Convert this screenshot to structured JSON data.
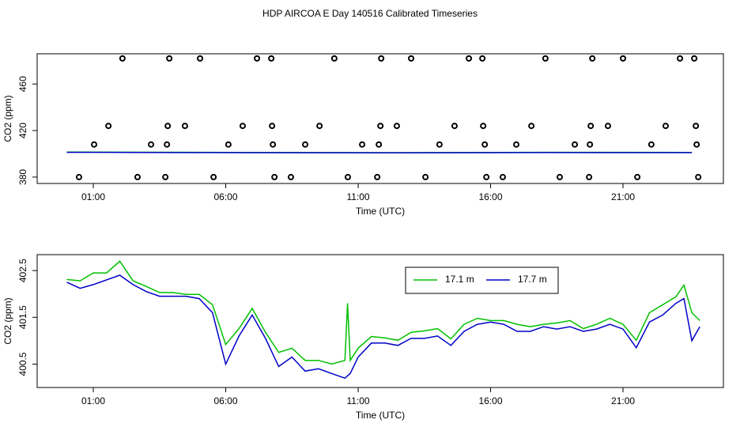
{
  "title": "HDP AIRCOA E  Day 140516  Calibrated Timeseries",
  "chart_data": [
    {
      "type": "scatter",
      "xlabel": "Time (UTC)",
      "ylabel": "CO2 (ppm)",
      "xlim": [
        -1.12,
        24.79
      ],
      "xticks": [
        {
          "value": 1,
          "label": "01:00"
        },
        {
          "value": 6,
          "label": "06:00"
        },
        {
          "value": 11,
          "label": "11:00"
        },
        {
          "value": 16,
          "label": "16:00"
        },
        {
          "value": 21,
          "label": "21:00"
        }
      ],
      "ylim": [
        374.5,
        486
      ],
      "yticks": [
        380,
        420,
        460
      ],
      "points": {
        "color": "#000000",
        "x": [
          2.1,
          3.87,
          5.03,
          7.18,
          7.72,
          10.1,
          11.87,
          13.0,
          15.18,
          15.69,
          18.07,
          19.84,
          21.0,
          23.15,
          23.69,
          1.57,
          3.81,
          4.46,
          6.64,
          7.75,
          9.54,
          11.84,
          12.46,
          14.64,
          15.72,
          17.54,
          19.78,
          20.43,
          22.61,
          23.75,
          1.03,
          3.18,
          3.78,
          6.1,
          7.78,
          9.0,
          11.15,
          11.78,
          14.07,
          15.78,
          16.97,
          19.18,
          19.75,
          22.07,
          23.78,
          0.46,
          2.67,
          3.72,
          5.54,
          7.84,
          8.46,
          10.61,
          11.72,
          13.54,
          15.84,
          16.46,
          18.61,
          19.72,
          21.54,
          23.84
        ],
        "values": [
          482,
          482,
          482,
          482,
          482,
          482,
          482,
          482,
          482,
          482,
          482,
          482,
          482,
          482,
          482,
          424,
          424,
          424,
          424,
          424,
          424,
          424,
          424,
          424,
          424,
          424,
          424,
          424,
          424,
          424,
          408,
          408,
          408,
          408,
          408,
          408,
          408,
          408,
          408,
          408,
          408,
          408,
          408,
          408,
          408,
          380,
          380,
          380,
          380,
          380,
          380,
          380,
          380,
          380,
          380,
          380,
          380,
          380,
          380,
          380
        ]
      },
      "series": [
        {
          "color": "#00c000",
          "x": [
            0,
            6,
            12,
            18,
            23.6
          ],
          "values": [
            401.5,
            401.2,
            401,
            401.3,
            401.2
          ]
        },
        {
          "color": "#0000c8",
          "x": [
            0,
            6,
            12,
            18,
            23.6
          ],
          "values": [
            401.3,
            401,
            400.8,
            401.1,
            401
          ]
        }
      ]
    },
    {
      "type": "line",
      "xlabel": "Time (UTC)",
      "ylabel": "CO2 (ppm)",
      "xlim": [
        -1.12,
        24.79
      ],
      "xticks": [
        {
          "value": 1,
          "label": "01:00"
        },
        {
          "value": 6,
          "label": "06:00"
        },
        {
          "value": 11,
          "label": "11:00"
        },
        {
          "value": 16,
          "label": "16:00"
        },
        {
          "value": 21,
          "label": "21:00"
        }
      ],
      "ylim": [
        400.0,
        402.84
      ],
      "yticks": [
        400.5,
        401.5,
        402.5
      ],
      "legend": "top-right",
      "x": [
        0,
        0.5,
        1,
        1.5,
        2,
        2.5,
        3,
        3.5,
        4,
        4.5,
        5,
        5.5,
        6,
        6.5,
        7,
        7.5,
        8,
        8.5,
        9,
        9.5,
        10,
        10.5,
        10.6,
        10.7,
        11,
        11.5,
        12,
        12.5,
        13,
        13.5,
        14,
        14.5,
        15,
        15.5,
        16,
        16.5,
        17,
        17.5,
        18,
        18.5,
        19,
        19.5,
        20,
        20.5,
        21,
        21.5,
        22,
        22.5,
        23,
        23.3,
        23.6,
        23.9
      ],
      "series": [
        {
          "name": "17.1 m",
          "color": "#00c000",
          "values": [
            402.31,
            402.28,
            402.45,
            402.45,
            402.7,
            402.28,
            402.16,
            402.03,
            402.03,
            401.99,
            401.99,
            401.77,
            400.92,
            401.26,
            401.69,
            401.18,
            400.75,
            400.84,
            400.58,
            400.58,
            400.5,
            400.58,
            401.8,
            400.58,
            400.84,
            401.09,
            401.06,
            401.01,
            401.18,
            401.21,
            401.26,
            401.04,
            401.35,
            401.48,
            401.43,
            401.43,
            401.35,
            401.3,
            401.35,
            401.38,
            401.43,
            401.26,
            401.35,
            401.48,
            401.35,
            401.01,
            401.6,
            401.77,
            401.94,
            402.19,
            401.6,
            401.43
          ]
        },
        {
          "name": "17.7 m",
          "color": "#0000c8",
          "values": [
            402.25,
            402.12,
            402.2,
            402.3,
            402.4,
            402.2,
            402.05,
            401.95,
            401.95,
            401.95,
            401.9,
            401.6,
            400.5,
            401.1,
            401.55,
            401.05,
            400.45,
            400.65,
            400.35,
            400.4,
            400.3,
            400.2,
            400.25,
            400.3,
            400.65,
            400.95,
            400.95,
            400.9,
            401.05,
            401.05,
            401.1,
            400.9,
            401.2,
            401.35,
            401.4,
            401.35,
            401.2,
            401.2,
            401.3,
            401.25,
            401.3,
            401.2,
            401.25,
            401.35,
            401.25,
            400.85,
            401.4,
            401.55,
            401.8,
            401.9,
            401.0,
            401.3
          ]
        }
      ]
    }
  ]
}
